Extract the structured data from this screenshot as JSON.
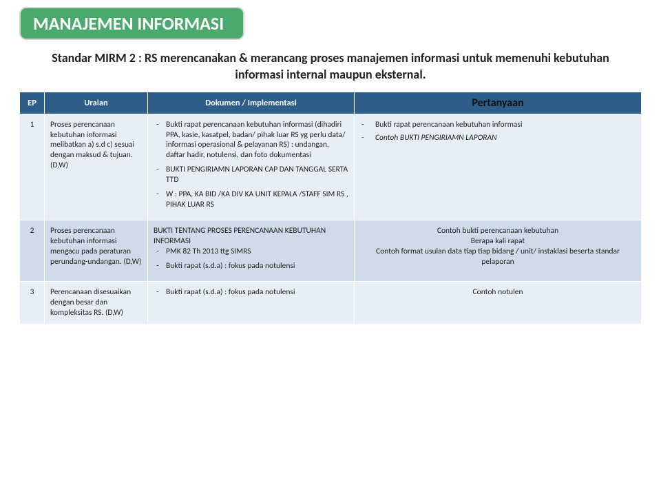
{
  "title_badge": "MANAJEMEN INFORMASI",
  "subtitle": "Standar MIRM 2 : RS merencanakan & merancang proses manajemen informasi untuk memenuhi kebutuhan informasi internal maupun eksternal.",
  "columns": {
    "ep": "EP",
    "uraian": "Uraian",
    "dokumen": "Dokumen / Implementasi",
    "pertanyaan": "Pertanyaan"
  },
  "rows": [
    {
      "ep": "1",
      "uraian": "Proses perencanaan kebutuhan informasi melibatkan a) s.d c) sesuai dengan maksud & tujuan. (D,W)",
      "dokumen": [
        "Bukti rapat perencanaan kebutuhan informasi (dihadiri PPA, kasie, kasatpel, badan/ pihak luar RS yg perlu data/ informasi operasional & pelayanan RS) : undangan, daftar hadir, notulensi, dan foto dokumentasi",
        "BUKTI PENGIRIAMN LAPORAN CAP DAN TANGGAL SERTA TTD",
        "W : PPA, KA BID /KA DIV KA UNIT KEPALA /STAFF SIM RS , PIHAK LUAR RS"
      ],
      "pertanyaan_items": [
        "Bukti rapat perencanaan kebutuhan informasi",
        "Contoh BUKTI PENGIRIAMN LAPORAN"
      ]
    },
    {
      "ep": "2",
      "uraian": "Proses perencanaan kebutuhan informasi mengacu pada peraturan perundang-undangan. (D,W)",
      "dokumen_intro": "BUKTI TENTANG PROSES PERENCANAAN KEBUTUHAN INFORMASI",
      "dokumen": [
        "PMK 82 Th 2013  ttg SIMRS",
        "Bukti rapat (s.d.a) : fokus pada notulensi"
      ],
      "pertanyaan_lines": [
        "Contoh bukti perencanaan kebutuhan",
        "Berapa kali rapat",
        "Contoh format usulan data tiap tiap bidang / unit/ instaklasi beserta standar pelaporan"
      ]
    },
    {
      "ep": "3",
      "uraian": "Perencanaan disesuaikan dengan besar dan kompleksitas RS. (D,W)",
      "dokumen": [
        "Bukti rapat (s.d.a) : fokus pada notulensi"
      ],
      "pertanyaan_text": "Contoh notulen"
    }
  ],
  "colors": {
    "badge_bg": "#4aa96c",
    "header_bg": "#2e5d8a",
    "row_odd": "#e8eef5",
    "row_even": "#cfdbe9"
  }
}
